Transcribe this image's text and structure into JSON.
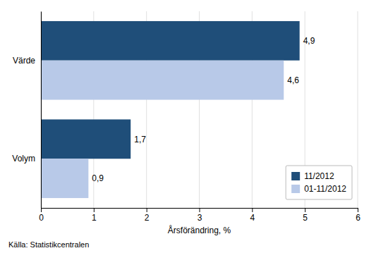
{
  "chart_data": {
    "type": "bar",
    "orientation": "horizontal",
    "categories": [
      "Volym",
      "Värde"
    ],
    "series": [
      {
        "name": "11/2012",
        "values": [
          1.7,
          4.9
        ],
        "value_labels": [
          "1,7",
          "4,9"
        ],
        "color": "#1f4e79"
      },
      {
        "name": "01-11/2012",
        "values": [
          0.9,
          4.6
        ],
        "value_labels": [
          "0,9",
          "4,6"
        ],
        "color": "#b8c9e8"
      }
    ],
    "xlabel": "Årsförändring, %",
    "xlim": [
      0,
      6
    ],
    "xticks": [
      0,
      1,
      2,
      3,
      4,
      5,
      6
    ],
    "source": "Källa: Statistikcentralen",
    "grid": true,
    "legend": "lower right",
    "data_labels": true
  }
}
